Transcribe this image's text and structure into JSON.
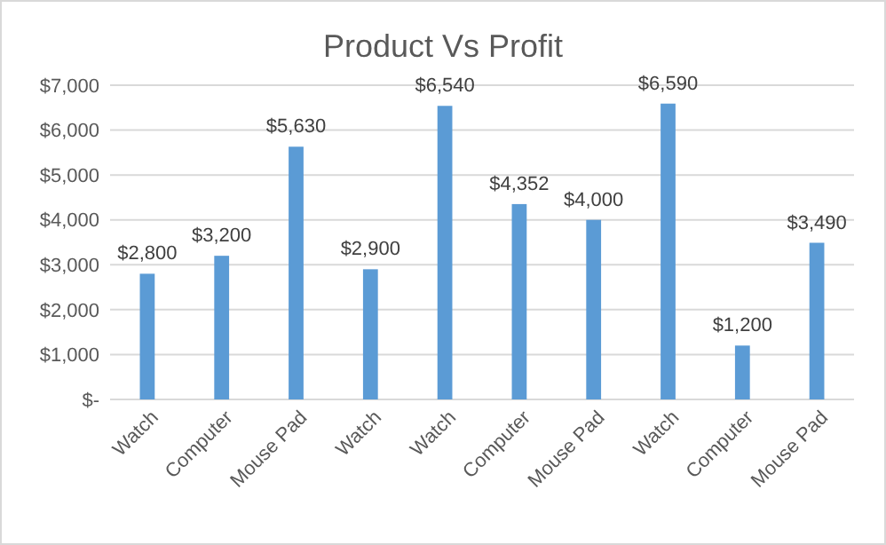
{
  "chart_data": {
    "type": "bar",
    "title": "Product Vs Profit",
    "categories": [
      "Watch",
      "Computer",
      "Mouse Pad",
      "Watch",
      "Watch",
      "Computer",
      "Mouse Pad",
      "Watch",
      "Computer",
      "Mouse Pad"
    ],
    "values": [
      2800,
      3200,
      5630,
      2900,
      6540,
      4352,
      4000,
      6590,
      1200,
      3490
    ],
    "value_labels": [
      "$2,800",
      "$3,200",
      "$5,630",
      "$2,900",
      "$6,540",
      "$4,352",
      "$4,000",
      "$6,590",
      "$1,200",
      "$3,490"
    ],
    "color": "#5b9bd5",
    "ylim": [
      0,
      7000
    ],
    "yticks": [
      {
        "value": 0,
        "label": "$-"
      },
      {
        "value": 1000,
        "label": "$1,000"
      },
      {
        "value": 2000,
        "label": "$2,000"
      },
      {
        "value": 3000,
        "label": "$3,000"
      },
      {
        "value": 4000,
        "label": "$4,000"
      },
      {
        "value": 5000,
        "label": "$5,000"
      },
      {
        "value": 6000,
        "label": "$6,000"
      },
      {
        "value": 7000,
        "label": "$7,000"
      }
    ],
    "grid": "y"
  }
}
